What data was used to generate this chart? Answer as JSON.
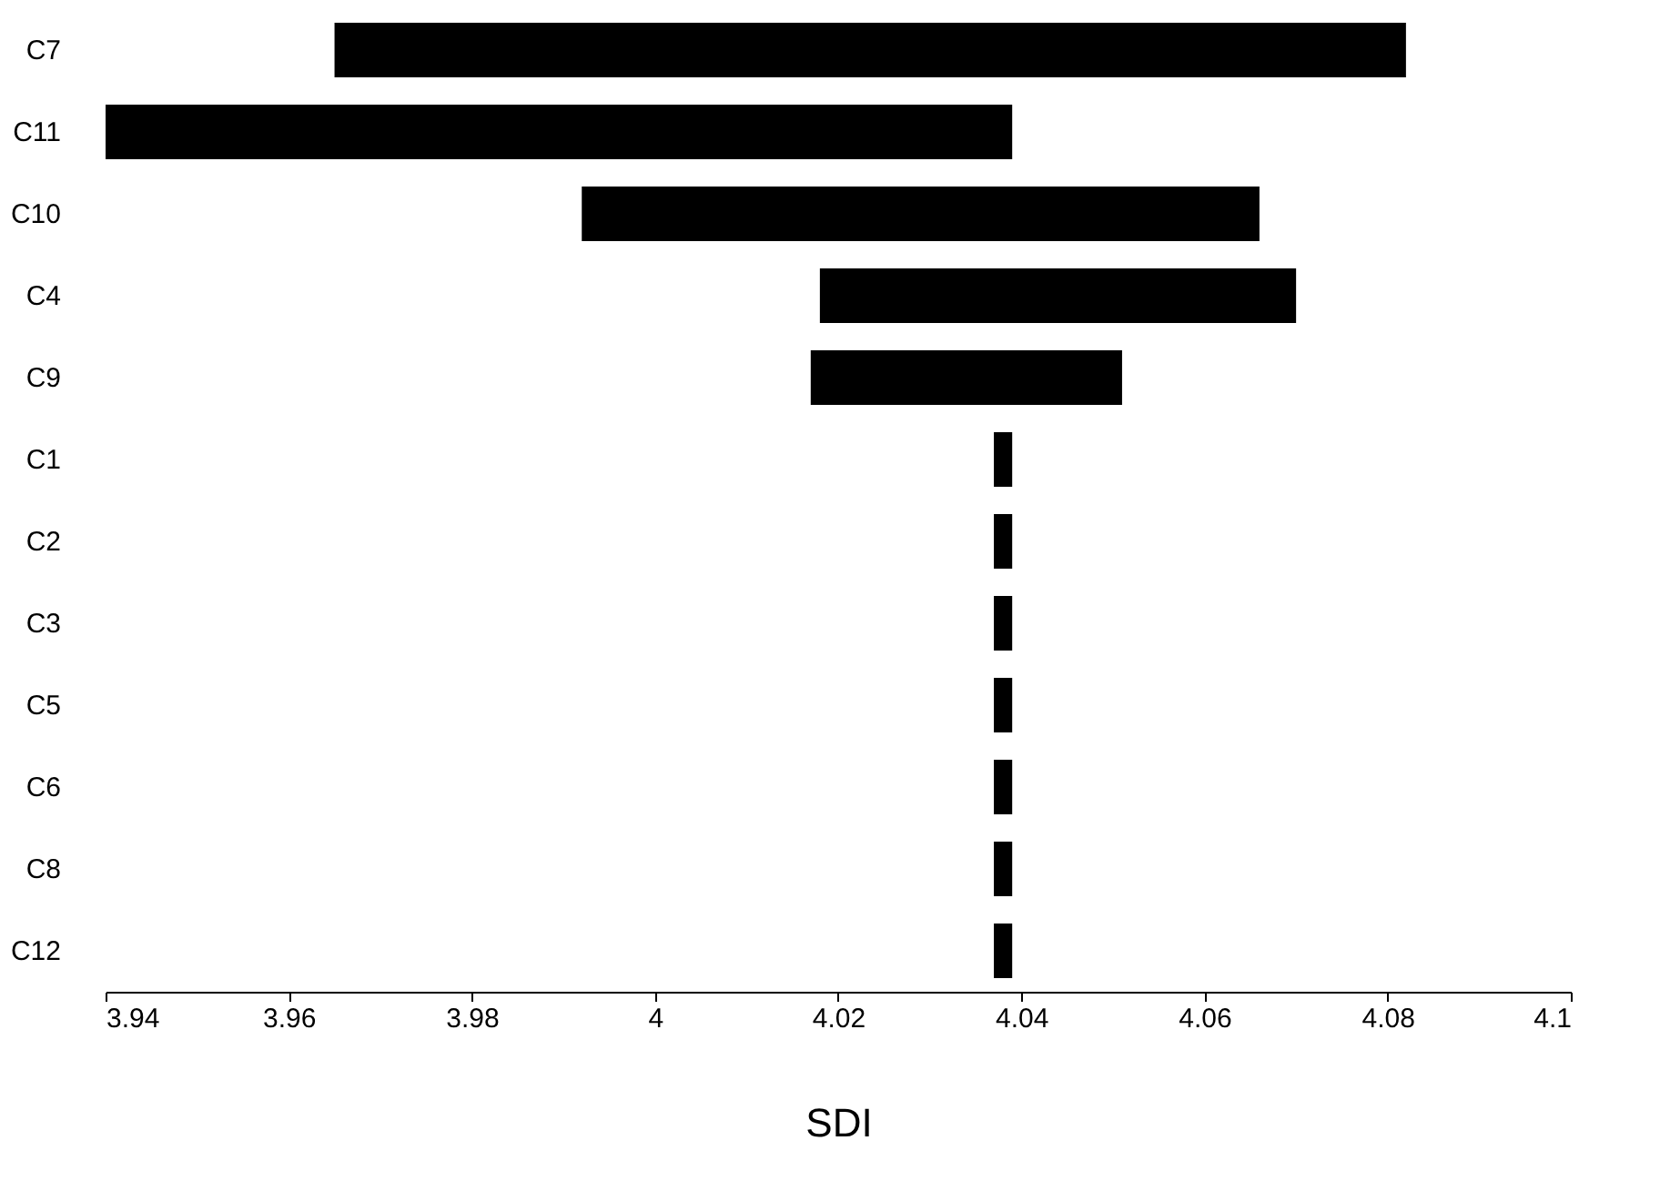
{
  "chart_data": {
    "type": "bar",
    "orientation": "horizontal",
    "xlabel": "SDI",
    "categories": [
      "C7",
      "C11",
      "C10",
      "C4",
      "C9",
      "C1",
      "C2",
      "C3",
      "C5",
      "C6",
      "C8",
      "C12"
    ],
    "base": [
      3.965,
      3.94,
      3.992,
      4.018,
      4.017,
      4.037,
      4.037,
      4.037,
      4.037,
      4.037,
      4.037,
      4.037
    ],
    "values": [
      0.117,
      0.099,
      0.074,
      0.052,
      0.034,
      0.002,
      0.002,
      0.002,
      0.002,
      0.002,
      0.002,
      0.002
    ],
    "color": "#000000",
    "xlim": [
      3.94,
      4.1
    ],
    "xticks": [
      3.94,
      3.96,
      3.98,
      4,
      4.02,
      4.04,
      4.06,
      4.08,
      4.1
    ],
    "grid": false
  }
}
